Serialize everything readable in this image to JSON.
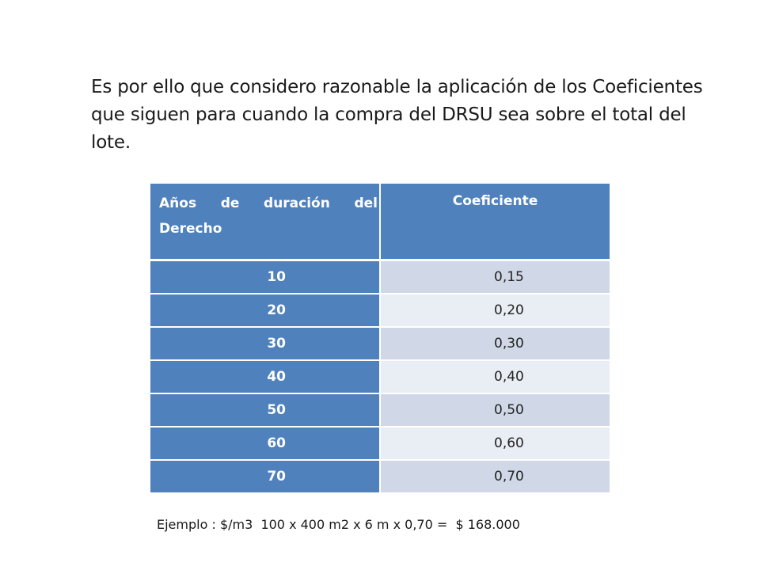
{
  "intro_text": "Es por ello que considero razonable la aplicación de los Coeficientes que siguen para cuando la compra del DRSU sea sobre el total del lote.",
  "table": {
    "headers": [
      "Años de duración del Derecho",
      "Coeficiente"
    ],
    "rows": [
      {
        "years": "10",
        "coefficient": "0,15"
      },
      {
        "years": "20",
        "coefficient": "0,20"
      },
      {
        "years": "30",
        "coefficient": "0,30"
      },
      {
        "years": "40",
        "coefficient": "0,40"
      },
      {
        "years": "50",
        "coefficient": "0,50"
      },
      {
        "years": "60",
        "coefficient": "0,60"
      },
      {
        "years": "70",
        "coefficient": "0,70"
      }
    ]
  },
  "example_text": "Ejemplo : $/m3  100 x 400 m2 x 6 m x 0,70 =  $ 168.000",
  "colors": {
    "header_blue": "#4f81bd",
    "row_light": "#e9edf4",
    "row_medium": "#d0d8e8",
    "text": "#1a1a1a"
  }
}
